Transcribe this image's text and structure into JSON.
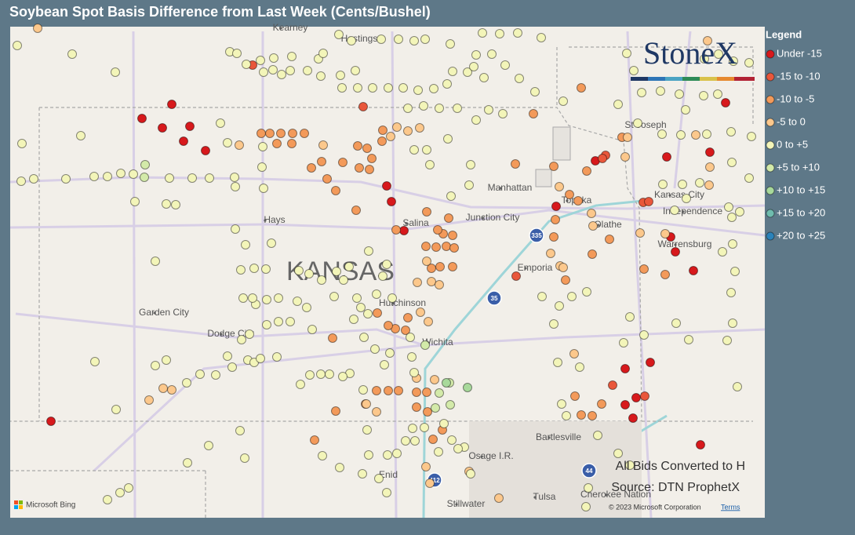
{
  "title": "Soybean Spot Basis Difference from Last Week (Cents/Bushel)",
  "legend": {
    "title": "Legend",
    "items": [
      {
        "label": "Under -15",
        "color": "#d7191c"
      },
      {
        "label": "-15 to -10",
        "color": "#e9573b"
      },
      {
        "label": "-10 to -5",
        "color": "#f39a5a"
      },
      {
        "label": "-5 to 0",
        "color": "#fcc88c"
      },
      {
        "label": "0 to +5",
        "color": "#f3f5b9"
      },
      {
        "label": "+5 to +10",
        "color": "#d3eaa9"
      },
      {
        "label": "+10 to +15",
        "color": "#a8d99b"
      },
      {
        "label": "+15 to +20",
        "color": "#6fbcae"
      },
      {
        "label": "+20 to +25",
        "color": "#2b83ba"
      }
    ]
  },
  "map": {
    "state_label": "KANSAS",
    "places": [
      "Kearney",
      "Hastings",
      "St Joseph",
      "Manhattan",
      "Topeka",
      "Kansas City",
      "Independence",
      "Junction City",
      "Salina",
      "Hays",
      "Olathe",
      "Emporia",
      "Warrensburg",
      "Garden City",
      "Dodge City",
      "Hutchinson",
      "Wichita",
      "Bartlesville",
      "Osage I.R.",
      "Enid",
      "Tulsa",
      "Stillwater",
      "Cherokee Nation"
    ],
    "highways": [
      "335",
      "35",
      "44",
      "412"
    ],
    "notes": [
      "All Bids Converted to H",
      "Source: DTN ProphetX"
    ],
    "bing": "Microsoft Bing",
    "attribution": "© 2023 Microsoft Corporation",
    "terms": "Terms",
    "logo": "StoneX"
  }
}
